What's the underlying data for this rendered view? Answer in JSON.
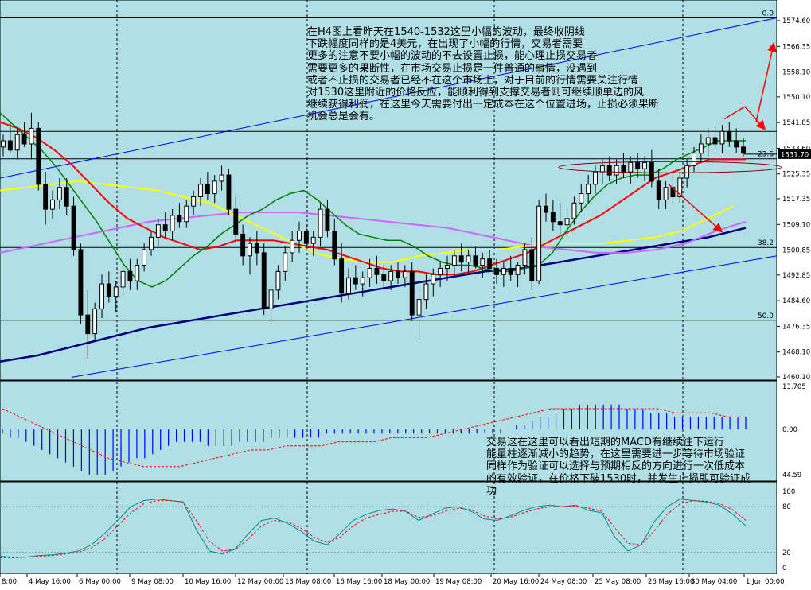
{
  "chart_data": {
    "type": "line",
    "instrument_timeframe": "H4",
    "background": "#b0e0e6",
    "colors": {
      "bull_candle": "#ffffff",
      "bear_candle": "#000000",
      "ma_green": "#008000",
      "ma_red": "#ff0000",
      "ma_yellow": "#ffff00",
      "ma_violet": "#cc66ff",
      "ma_navy": "#000080",
      "channel": "#0000ff",
      "macd_hist": "#0000ff",
      "macd_signal": "#ff0000",
      "stoch_main": "#008b8b",
      "stoch_signal": "#ff0000",
      "arrows": "#ff0000"
    },
    "price_axis": {
      "ticks": [
        "1574.60",
        "1566.35",
        "1558.10",
        "1550.10",
        "1541.85",
        "1533.60",
        "1525.35",
        "1517.35",
        "1509.10",
        "1500.85",
        "1492.85",
        "1484.60",
        "1476.35",
        "1468.10",
        "1460.10"
      ],
      "ylim": [
        1460.1,
        1574.6
      ],
      "current_price": "1531.70"
    },
    "x_labels": [
      "8:00",
      "4 May 16:00",
      "6 May 00:00",
      "9 May 08:00",
      "10 May 16:00",
      "12 May 00:00",
      "13 May 08:00",
      "16 May 16:00",
      "18 May 00:00",
      "19 May 08:00",
      "20 May 16:00",
      "24 May 08:00",
      "25 May 08:00",
      "26 May 16:00",
      "30 May 04:00",
      "1 Jun 00:00"
    ],
    "fibonacci_levels": [
      {
        "label": "0.0",
        "price": 1575.5
      },
      {
        "label": "23.6",
        "price": 1530.2
      },
      {
        "label": "38.2",
        "price": 1501.7
      },
      {
        "label": "50.0",
        "price": 1478.3
      }
    ],
    "candles": [
      {
        "o": 1534,
        "h": 1538,
        "l": 1531,
        "c": 1536
      },
      {
        "o": 1536,
        "h": 1542,
        "l": 1532,
        "c": 1533
      },
      {
        "o": 1533,
        "h": 1540,
        "l": 1530,
        "c": 1538
      },
      {
        "o": 1538,
        "h": 1542,
        "l": 1534,
        "c": 1535
      },
      {
        "o": 1535,
        "h": 1545,
        "l": 1530,
        "c": 1540
      },
      {
        "o": 1540,
        "h": 1542,
        "l": 1520,
        "c": 1522
      },
      {
        "o": 1522,
        "h": 1526,
        "l": 1509,
        "c": 1514
      },
      {
        "o": 1514,
        "h": 1520,
        "l": 1511,
        "c": 1517
      },
      {
        "o": 1517,
        "h": 1524,
        "l": 1514,
        "c": 1521
      },
      {
        "o": 1521,
        "h": 1524,
        "l": 1512,
        "c": 1515
      },
      {
        "o": 1515,
        "h": 1518,
        "l": 1499,
        "c": 1501
      },
      {
        "o": 1501,
        "h": 1503,
        "l": 1477,
        "c": 1480
      },
      {
        "o": 1480,
        "h": 1488,
        "l": 1466,
        "c": 1474
      },
      {
        "o": 1474,
        "h": 1484,
        "l": 1472,
        "c": 1482
      },
      {
        "o": 1482,
        "h": 1493,
        "l": 1479,
        "c": 1490
      },
      {
        "o": 1490,
        "h": 1494,
        "l": 1484,
        "c": 1486
      },
      {
        "o": 1486,
        "h": 1491,
        "l": 1481,
        "c": 1489
      },
      {
        "o": 1489,
        "h": 1496,
        "l": 1486,
        "c": 1494
      },
      {
        "o": 1494,
        "h": 1498,
        "l": 1488,
        "c": 1491
      },
      {
        "o": 1491,
        "h": 1498,
        "l": 1488,
        "c": 1496
      },
      {
        "o": 1496,
        "h": 1503,
        "l": 1494,
        "c": 1501
      },
      {
        "o": 1501,
        "h": 1507,
        "l": 1499,
        "c": 1505
      },
      {
        "o": 1505,
        "h": 1511,
        "l": 1502,
        "c": 1509
      },
      {
        "o": 1509,
        "h": 1513,
        "l": 1505,
        "c": 1507
      },
      {
        "o": 1507,
        "h": 1514,
        "l": 1504,
        "c": 1512
      },
      {
        "o": 1512,
        "h": 1516,
        "l": 1508,
        "c": 1510
      },
      {
        "o": 1510,
        "h": 1517,
        "l": 1508,
        "c": 1515
      },
      {
        "o": 1515,
        "h": 1520,
        "l": 1512,
        "c": 1518
      },
      {
        "o": 1518,
        "h": 1524,
        "l": 1515,
        "c": 1522
      },
      {
        "o": 1522,
        "h": 1526,
        "l": 1517,
        "c": 1519
      },
      {
        "o": 1519,
        "h": 1525,
        "l": 1516,
        "c": 1523
      },
      {
        "o": 1523,
        "h": 1528,
        "l": 1520,
        "c": 1525
      },
      {
        "o": 1525,
        "h": 1527,
        "l": 1512,
        "c": 1514
      },
      {
        "o": 1514,
        "h": 1518,
        "l": 1503,
        "c": 1506
      },
      {
        "o": 1506,
        "h": 1509,
        "l": 1496,
        "c": 1499
      },
      {
        "o": 1499,
        "h": 1505,
        "l": 1493,
        "c": 1503
      },
      {
        "o": 1503,
        "h": 1507,
        "l": 1496,
        "c": 1500
      },
      {
        "o": 1500,
        "h": 1503,
        "l": 1480,
        "c": 1482
      },
      {
        "o": 1482,
        "h": 1490,
        "l": 1477,
        "c": 1488
      },
      {
        "o": 1488,
        "h": 1496,
        "l": 1485,
        "c": 1494
      },
      {
        "o": 1494,
        "h": 1502,
        "l": 1491,
        "c": 1500
      },
      {
        "o": 1500,
        "h": 1507,
        "l": 1497,
        "c": 1504
      },
      {
        "o": 1504,
        "h": 1510,
        "l": 1500,
        "c": 1507
      },
      {
        "o": 1507,
        "h": 1509,
        "l": 1501,
        "c": 1503
      },
      {
        "o": 1503,
        "h": 1507,
        "l": 1499,
        "c": 1505
      },
      {
        "o": 1505,
        "h": 1516,
        "l": 1502,
        "c": 1514
      },
      {
        "o": 1514,
        "h": 1517,
        "l": 1505,
        "c": 1507
      },
      {
        "o": 1507,
        "h": 1511,
        "l": 1496,
        "c": 1498
      },
      {
        "o": 1498,
        "h": 1503,
        "l": 1484,
        "c": 1487
      },
      {
        "o": 1487,
        "h": 1495,
        "l": 1485,
        "c": 1492
      },
      {
        "o": 1492,
        "h": 1496,
        "l": 1488,
        "c": 1490
      },
      {
        "o": 1490,
        "h": 1494,
        "l": 1486,
        "c": 1492
      },
      {
        "o": 1492,
        "h": 1498,
        "l": 1489,
        "c": 1495
      },
      {
        "o": 1495,
        "h": 1499,
        "l": 1490,
        "c": 1493
      },
      {
        "o": 1493,
        "h": 1496,
        "l": 1488,
        "c": 1491
      },
      {
        "o": 1491,
        "h": 1496,
        "l": 1488,
        "c": 1494
      },
      {
        "o": 1494,
        "h": 1497,
        "l": 1490,
        "c": 1492
      },
      {
        "o": 1492,
        "h": 1496,
        "l": 1489,
        "c": 1494
      },
      {
        "o": 1494,
        "h": 1497,
        "l": 1478,
        "c": 1480
      },
      {
        "o": 1480,
        "h": 1488,
        "l": 1472,
        "c": 1485
      },
      {
        "o": 1485,
        "h": 1493,
        "l": 1482,
        "c": 1490
      },
      {
        "o": 1490,
        "h": 1495,
        "l": 1486,
        "c": 1493
      },
      {
        "o": 1493,
        "h": 1497,
        "l": 1489,
        "c": 1495
      },
      {
        "o": 1495,
        "h": 1499,
        "l": 1491,
        "c": 1496
      },
      {
        "o": 1496,
        "h": 1501,
        "l": 1492,
        "c": 1499
      },
      {
        "o": 1499,
        "h": 1503,
        "l": 1494,
        "c": 1497
      },
      {
        "o": 1497,
        "h": 1501,
        "l": 1493,
        "c": 1499
      },
      {
        "o": 1499,
        "h": 1502,
        "l": 1495,
        "c": 1496
      },
      {
        "o": 1496,
        "h": 1500,
        "l": 1492,
        "c": 1498
      },
      {
        "o": 1498,
        "h": 1501,
        "l": 1494,
        "c": 1495
      },
      {
        "o": 1495,
        "h": 1498,
        "l": 1490,
        "c": 1493
      },
      {
        "o": 1493,
        "h": 1497,
        "l": 1489,
        "c": 1495
      },
      {
        "o": 1495,
        "h": 1499,
        "l": 1491,
        "c": 1493
      },
      {
        "o": 1493,
        "h": 1497,
        "l": 1489,
        "c": 1496
      },
      {
        "o": 1496,
        "h": 1503,
        "l": 1493,
        "c": 1501
      },
      {
        "o": 1501,
        "h": 1505,
        "l": 1488,
        "c": 1491
      },
      {
        "o": 1491,
        "h": 1517,
        "l": 1490,
        "c": 1515
      },
      {
        "o": 1515,
        "h": 1519,
        "l": 1510,
        "c": 1513
      },
      {
        "o": 1513,
        "h": 1517,
        "l": 1507,
        "c": 1510
      },
      {
        "o": 1510,
        "h": 1516,
        "l": 1506,
        "c": 1509
      },
      {
        "o": 1509,
        "h": 1514,
        "l": 1505,
        "c": 1511
      },
      {
        "o": 1511,
        "h": 1518,
        "l": 1509,
        "c": 1516
      },
      {
        "o": 1516,
        "h": 1522,
        "l": 1513,
        "c": 1519
      },
      {
        "o": 1519,
        "h": 1525,
        "l": 1516,
        "c": 1522
      },
      {
        "o": 1522,
        "h": 1528,
        "l": 1519,
        "c": 1526
      },
      {
        "o": 1526,
        "h": 1530,
        "l": 1522,
        "c": 1528
      },
      {
        "o": 1528,
        "h": 1531,
        "l": 1523,
        "c": 1525
      },
      {
        "o": 1525,
        "h": 1530,
        "l": 1522,
        "c": 1528
      },
      {
        "o": 1528,
        "h": 1532,
        "l": 1524,
        "c": 1526
      },
      {
        "o": 1526,
        "h": 1531,
        "l": 1522,
        "c": 1529
      },
      {
        "o": 1529,
        "h": 1532,
        "l": 1524,
        "c": 1527
      },
      {
        "o": 1527,
        "h": 1531,
        "l": 1523,
        "c": 1529
      },
      {
        "o": 1529,
        "h": 1533,
        "l": 1521,
        "c": 1523
      },
      {
        "o": 1523,
        "h": 1527,
        "l": 1514,
        "c": 1517
      },
      {
        "o": 1517,
        "h": 1523,
        "l": 1514,
        "c": 1521
      },
      {
        "o": 1521,
        "h": 1525,
        "l": 1516,
        "c": 1518
      },
      {
        "o": 1518,
        "h": 1526,
        "l": 1516,
        "c": 1524
      },
      {
        "o": 1524,
        "h": 1530,
        "l": 1521,
        "c": 1528
      },
      {
        "o": 1528,
        "h": 1534,
        "l": 1526,
        "c": 1532
      },
      {
        "o": 1532,
        "h": 1538,
        "l": 1529,
        "c": 1535
      },
      {
        "o": 1535,
        "h": 1540,
        "l": 1531,
        "c": 1537
      },
      {
        "o": 1537,
        "h": 1541,
        "l": 1533,
        "c": 1535
      },
      {
        "o": 1535,
        "h": 1541,
        "l": 1532,
        "c": 1539
      },
      {
        "o": 1539,
        "h": 1542,
        "l": 1534,
        "c": 1536
      },
      {
        "o": 1536,
        "h": 1540,
        "l": 1532,
        "c": 1534
      },
      {
        "o": 1534,
        "h": 1537,
        "l": 1531,
        "c": 1532
      }
    ],
    "moving_averages": {
      "green": [
        1545,
        1541,
        1537,
        1533,
        1528,
        1522,
        1516,
        1510,
        1503,
        1496,
        1491,
        1489,
        1491,
        1495,
        1499,
        1502,
        1506,
        1509,
        1512,
        1514,
        1517,
        1519,
        1520,
        1517,
        1513,
        1509,
        1506,
        1505,
        1504,
        1504,
        1502,
        1499,
        1497,
        1496,
        1496,
        1495,
        1494,
        1494,
        1495,
        1496,
        1500,
        1507,
        1513,
        1518,
        1522,
        1524,
        1525,
        1525,
        1527,
        1530,
        1532,
        1534,
        1536,
        1536,
        1536
      ],
      "red": [
        1542,
        1540,
        1537,
        1533,
        1528,
        1522,
        1516,
        1511,
        1508,
        1505,
        1503,
        1501,
        1502,
        1504,
        1504,
        1504,
        1503,
        1502,
        1501,
        1499,
        1497,
        1495,
        1494,
        1494,
        1493,
        1493,
        1494,
        1496,
        1498,
        1500,
        1503,
        1506,
        1509,
        1512,
        1516,
        1520,
        1524,
        1526,
        1528,
        1530,
        1530,
        1530
      ],
      "yellow": [
        1520,
        1521,
        1522,
        1523,
        1522,
        1521,
        1520,
        1518,
        1516,
        1512,
        1508,
        1504,
        1500,
        1498,
        1497,
        1497,
        1499,
        1500,
        1501,
        1501,
        1502,
        1503,
        1503,
        1503,
        1504,
        1505,
        1507,
        1511,
        1515
      ],
      "violet": [
        1500,
        1502,
        1504,
        1506,
        1508,
        1510,
        1511,
        1512,
        1513,
        1513,
        1513,
        1512,
        1511,
        1510,
        1509,
        1508,
        1506,
        1504,
        1502,
        1501,
        1500,
        1500,
        1501,
        1503,
        1507,
        1510
      ],
      "navy": [
        1465,
        1467,
        1470,
        1473,
        1476,
        1478,
        1480,
        1482,
        1484,
        1486,
        1488,
        1490,
        1492,
        1494,
        1495,
        1497,
        1499,
        1501,
        1503,
        1505,
        1508
      ]
    },
    "macd": {
      "axis_ticks": [
        "13.705",
        "0.00"
      ],
      "histogram": [
        -1,
        -2,
        -2,
        -3,
        -4,
        -5,
        -6,
        -7,
        -8,
        -9,
        -10,
        -11,
        -11,
        -11,
        -10,
        -9,
        -8,
        -7,
        -7,
        -6,
        -5,
        -4,
        -3,
        -3,
        -3,
        -3,
        -4,
        -4,
        -4,
        -4,
        -3,
        -3,
        -3,
        -3,
        -2,
        -2,
        -2,
        -2,
        -2,
        -2,
        -2,
        -1,
        -1,
        -1,
        -1,
        -1,
        -1,
        -1,
        -1,
        -1,
        -1,
        -1,
        -1,
        -1,
        -1,
        -1,
        -1,
        -1,
        -1,
        -1,
        -1,
        -1,
        -1,
        -1,
        0,
        1,
        1,
        2,
        3,
        3,
        4,
        5,
        5,
        6,
        6,
        6,
        6,
        6,
        6,
        5,
        5,
        5,
        4,
        4,
        4,
        3,
        3,
        3,
        3,
        3,
        3,
        3,
        3,
        3,
        3
      ],
      "signal": [
        5,
        3,
        1,
        -1,
        -3,
        -5,
        -7,
        -8,
        -9,
        -9,
        -9,
        -8,
        -7,
        -6,
        -5,
        -5,
        -4,
        -4,
        -4,
        -3,
        -3,
        -3,
        -2,
        -2,
        -2,
        -1,
        0,
        1,
        2,
        3,
        4,
        5,
        5,
        5,
        5,
        5,
        5,
        5,
        4,
        4,
        4,
        3,
        3
      ]
    },
    "stochastic": {
      "axis_ticks": [
        "100",
        "80",
        "20",
        "0"
      ],
      "corner_value": "44.59",
      "main": [
        15,
        14,
        14,
        16,
        17,
        19,
        22,
        30,
        45,
        62,
        80,
        88,
        90,
        88,
        86,
        50,
        22,
        18,
        25,
        45,
        62,
        65,
        58,
        48,
        35,
        30,
        45,
        62,
        70,
        75,
        77,
        74,
        62,
        70,
        78,
        80,
        74,
        64,
        62,
        68,
        75,
        80,
        82,
        80,
        82,
        75,
        72,
        40,
        22,
        30,
        60,
        80,
        90,
        88,
        86,
        82,
        70,
        55
      ],
      "signal": [
        13,
        13,
        14,
        15,
        16,
        18,
        20,
        26,
        38,
        55,
        72,
        84,
        88,
        88,
        86,
        62,
        35,
        22,
        24,
        38,
        55,
        62,
        60,
        52,
        40,
        33,
        40,
        55,
        65,
        70,
        74,
        74,
        66,
        68,
        74,
        78,
        76,
        68,
        64,
        66,
        72,
        77,
        80,
        80,
        81,
        78,
        74,
        52,
        32,
        30,
        48,
        70,
        84,
        88,
        87,
        84,
        76,
        62
      ]
    }
  },
  "annotations": {
    "top_lines": [
      "在H4图上看昨天在1540-1532这里小幅的波动，最终收阴线",
      "下跌幅度同样的是4美元，在出现了小幅的行情，交易者需要",
      "更多的注意不要小幅的波动的不去设置止损，能心理止损交易者",
      "需要更多的果断性，在市场交易止损是一件普通的事情，没遇到",
      "或者不止损的交易者已经不在这个市场上，对于目前的行情需要关注行情",
      "对1530这里附近的价格反应，能顺利得到支撑交易者则可继续顺单边的风",
      "继续获得利润，在这里今天需要付出一定成本在这个位置进场，止损必须果断",
      "机会总是会有。"
    ],
    "bottom_lines": [
      "交易这在这里可以看出短期的MACD有继续往下运行",
      "能量柱逐渐减小的趋势，在这里需要进一步等待市场验证",
      "同样作为验证可以选择与预期相反的方向进行一次低成本",
      "的有效验证，在价格下破1530时，并发生止损即可验证成",
      "功"
    ]
  }
}
